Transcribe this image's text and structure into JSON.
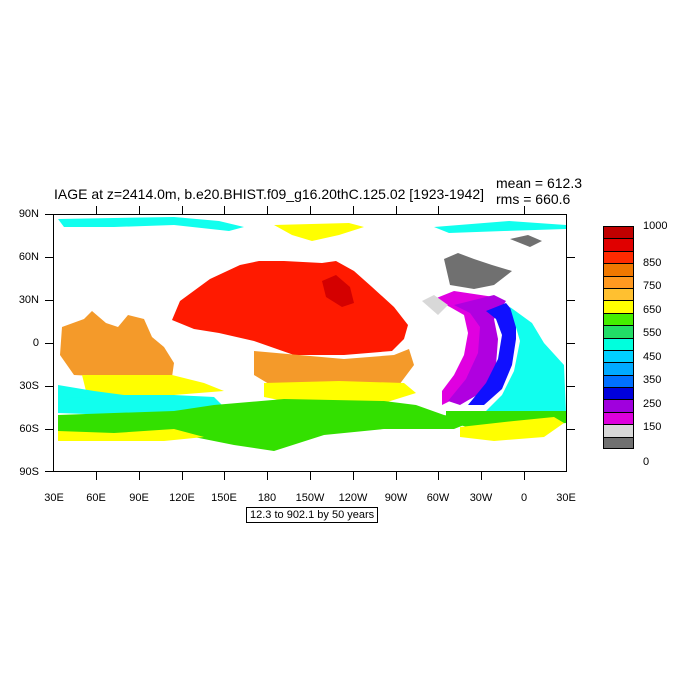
{
  "title": "IAGE at z=2414.0m, b.e20.BHIST.f09_g16.20thC.125.02 [1923-1942]",
  "stats": {
    "mean": "mean = 612.3",
    "rms": "rms = 660.6"
  },
  "range_label": "12.3 to 902.1 by 50 years",
  "y_axis": {
    "ticks": [
      "90N",
      "60N",
      "30N",
      "0",
      "30S",
      "60S",
      "90S"
    ],
    "range": [
      -90,
      90
    ]
  },
  "x_axis": {
    "ticks": [
      "30E",
      "60E",
      "90E",
      "120E",
      "150E",
      "180",
      "150W",
      "120W",
      "90W",
      "60W",
      "30W",
      "0",
      "30E"
    ],
    "range": [
      30,
      390
    ]
  },
  "legend": {
    "colors": [
      "#c00000",
      "#e00000",
      "#ff2a00",
      "#f07800",
      "#ff9920",
      "#ffc030",
      "#ffff00",
      "#44ee00",
      "#22dd66",
      "#00ffdd",
      "#00d0ff",
      "#00aaff",
      "#0070ff",
      "#0000dd",
      "#a000dd",
      "#dd00dd",
      "#d8d8d8",
      "#707070"
    ],
    "labels": [
      "1000",
      "850",
      "750",
      "650",
      "550",
      "450",
      "350",
      "250",
      "150",
      "0"
    ]
  },
  "map_colors": {
    "ocean_red": "#ff1a00",
    "dark_red": "#d40000",
    "orange": "#f49a2a",
    "yellow": "#ffff00",
    "green": "#33e000",
    "cyan": "#11ffee",
    "blue": "#1010ff",
    "purple": "#b000e0",
    "magenta": "#e000e0",
    "gray": "#707070"
  }
}
